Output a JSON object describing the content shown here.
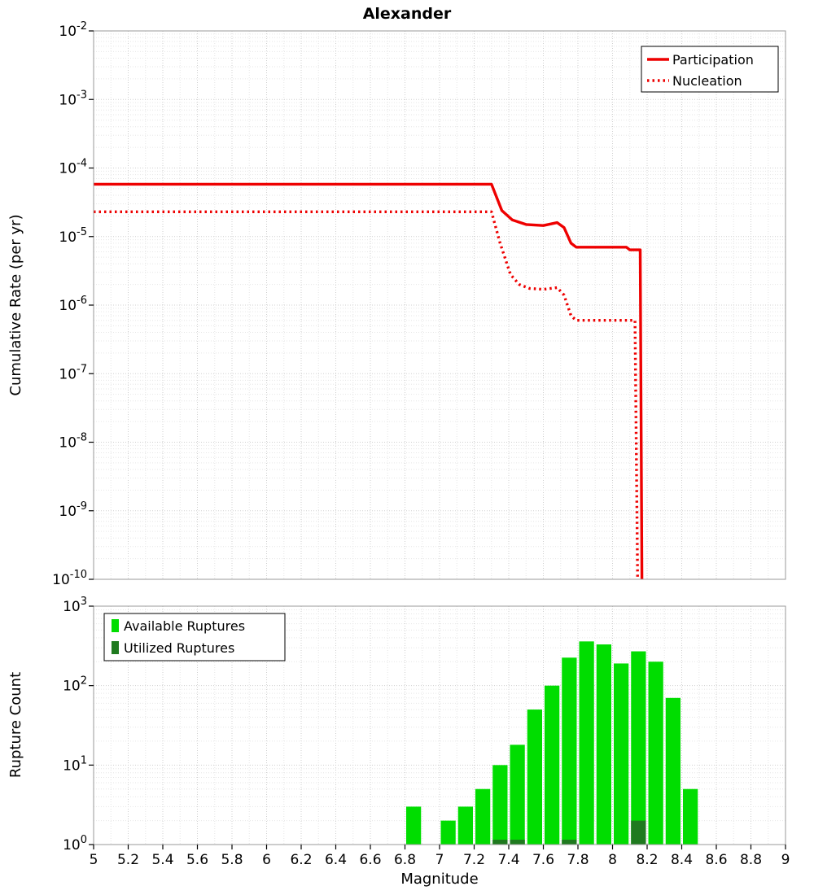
{
  "title": "Alexander",
  "colors": {
    "line_red": "#ee0000",
    "available_green": "#00dd00",
    "utilized_green": "#1f7a1f",
    "grid_major": "#cfcfcf",
    "grid_minor": "#e6e6e6",
    "plot_border": "#9a9a9a",
    "text": "#000000"
  },
  "chart_data": [
    {
      "type": "line",
      "panel": "top",
      "title": "Alexander",
      "xlabel": "Magnitude",
      "ylabel": "Cumulative Rate (per yr)",
      "xlim": [
        5,
        9
      ],
      "yscale": "log",
      "ylim": [
        1e-10,
        0.01
      ],
      "grid": true,
      "x_tick_labels": [
        "5",
        "5.2",
        "5.4",
        "5.6",
        "5.8",
        "6",
        "6.2",
        "6.4",
        "6.6",
        "6.8",
        "7",
        "7.2",
        "7.4",
        "7.6",
        "7.8",
        "8",
        "8.2",
        "8.4",
        "8.6",
        "8.8",
        "9"
      ],
      "y_tick_exponents": [
        -2,
        -3,
        -4,
        -5,
        -6,
        -7,
        -8,
        -9,
        -10
      ],
      "legend": {
        "position": "top-right",
        "entries": [
          "Participation",
          "Nucleation"
        ]
      },
      "series": [
        {
          "name": "Participation",
          "line_style": "solid",
          "color": "#ee0000",
          "points": [
            [
              5.0,
              5.8e-05
            ],
            [
              7.3,
              5.8e-05
            ],
            [
              7.36,
              2.4e-05
            ],
            [
              7.42,
              1.75e-05
            ],
            [
              7.5,
              1.5e-05
            ],
            [
              7.6,
              1.45e-05
            ],
            [
              7.68,
              1.6e-05
            ],
            [
              7.72,
              1.35e-05
            ],
            [
              7.76,
              8e-06
            ],
            [
              7.79,
              7e-06
            ],
            [
              8.08,
              7e-06
            ],
            [
              8.1,
              6.4e-06
            ],
            [
              8.16,
              6.4e-06
            ],
            [
              8.17,
              1e-10
            ]
          ]
        },
        {
          "name": "Nucleation",
          "line_style": "dotted",
          "color": "#ee0000",
          "points": [
            [
              5.0,
              2.3e-05
            ],
            [
              7.3,
              2.3e-05
            ],
            [
              7.35,
              8e-06
            ],
            [
              7.41,
              2.8e-06
            ],
            [
              7.46,
              2e-06
            ],
            [
              7.52,
              1.75e-06
            ],
            [
              7.6,
              1.7e-06
            ],
            [
              7.68,
              1.8e-06
            ],
            [
              7.72,
              1.4e-06
            ],
            [
              7.76,
              7e-07
            ],
            [
              7.79,
              6e-07
            ],
            [
              8.13,
              6e-07
            ],
            [
              8.145,
              1e-10
            ]
          ]
        }
      ]
    },
    {
      "type": "bar",
      "panel": "bottom",
      "title": "",
      "xlabel": "Magnitude",
      "ylabel": "Rupture Count",
      "xlim": [
        5,
        9
      ],
      "yscale": "log",
      "ylim": [
        1,
        1000
      ],
      "grid": true,
      "bin_width": 0.1,
      "x_tick_labels": [
        "5",
        "5.2",
        "5.4",
        "5.6",
        "5.8",
        "6",
        "6.2",
        "6.4",
        "6.6",
        "6.8",
        "7",
        "7.2",
        "7.4",
        "7.6",
        "7.8",
        "8",
        "8.2",
        "8.4",
        "8.6",
        "8.8",
        "9"
      ],
      "y_tick_exponents": [
        0,
        1,
        2,
        3
      ],
      "legend": {
        "position": "top-left",
        "entries": [
          "Available Ruptures",
          "Utilized Ruptures"
        ]
      },
      "categories": [
        6.85,
        7.05,
        7.15,
        7.25,
        7.35,
        7.45,
        7.55,
        7.65,
        7.75,
        7.85,
        7.95,
        8.05,
        8.15,
        8.25,
        8.35,
        8.45
      ],
      "series": [
        {
          "name": "Available Ruptures",
          "color": "#00dd00",
          "values": [
            3,
            2,
            3,
            5,
            10,
            18,
            50,
            100,
            225,
            360,
            330,
            190,
            270,
            200,
            70,
            5
          ]
        },
        {
          "name": "Utilized Ruptures",
          "color": "#1f7a1f",
          "values": [
            0,
            0,
            0,
            0,
            1,
            1,
            0,
            0,
            1,
            0,
            0,
            0,
            2,
            0,
            0,
            0
          ]
        }
      ]
    }
  ]
}
